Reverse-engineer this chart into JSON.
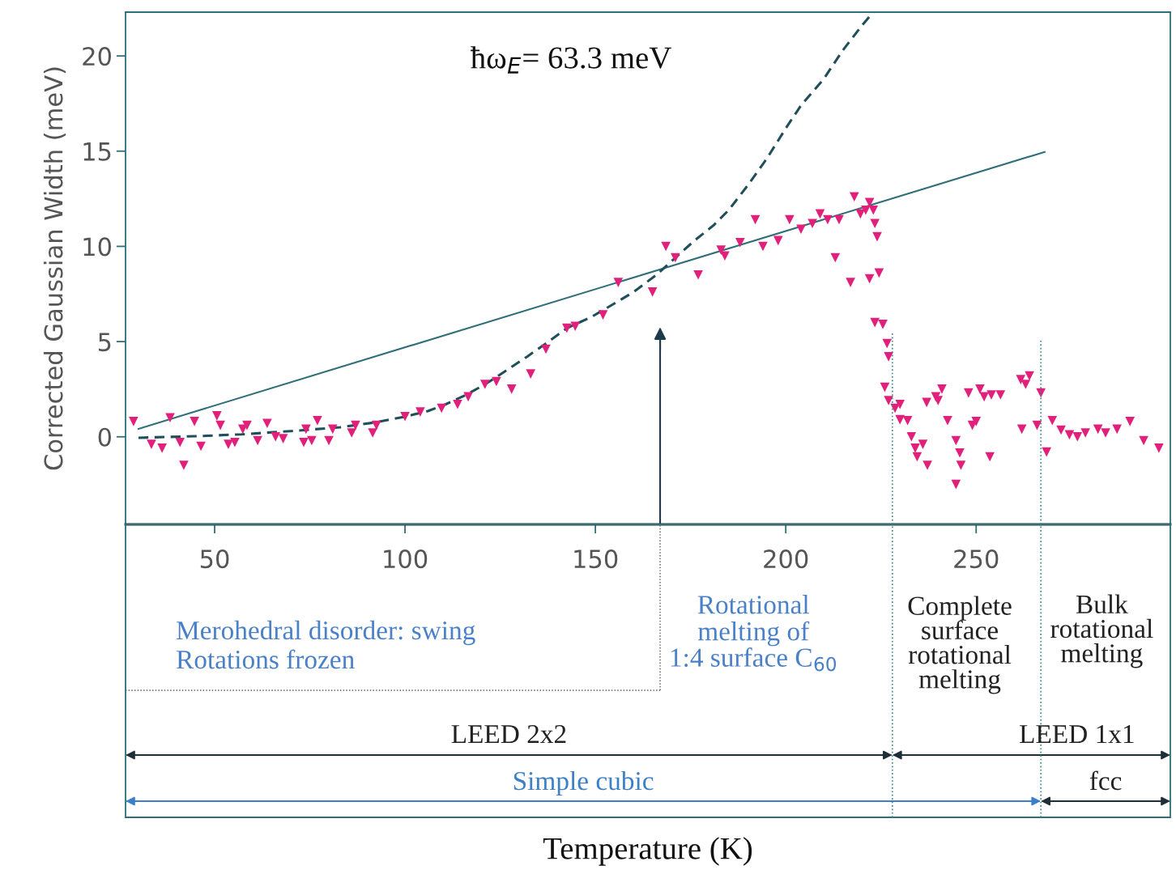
{
  "chart_data": {
    "type": "scatter",
    "ylabel": "Corrected Gaussian Width (meV)",
    "xlim": [
      26.6,
      301
    ],
    "ylim": [
      -4.6,
      22.3
    ],
    "xticks": [
      50,
      100,
      150,
      200,
      250
    ],
    "yticks": [
      0,
      5,
      10,
      15,
      20
    ],
    "grid": false,
    "series": [
      {
        "marker": "triangle",
        "color": "#e0207a",
        "x": [
          28.7,
          33.4,
          36.2,
          38.3,
          40.9,
          41.9,
          44.7,
          46.4,
          50.6,
          51.5,
          53.6,
          55.3,
          57.4,
          58.5,
          61.3,
          63.8,
          66,
          68,
          73.4,
          74,
          75.5,
          77,
          80,
          81,
          86,
          87,
          91.5,
          92.5,
          100,
          104,
          109.6,
          113.8,
          116.6,
          121,
          124,
          128,
          133,
          137,
          142.5,
          144.7,
          152,
          156,
          165,
          168.5,
          171,
          177,
          183,
          184,
          188,
          192,
          194,
          198,
          201,
          204,
          207,
          209,
          211,
          213,
          214,
          217,
          218,
          219.6,
          221,
          222,
          223,
          223.4,
          224,
          222,
          224.5,
          223.4,
          225.5,
          226.6,
          227,
          226,
          227,
          228.7,
          230,
          232,
          230,
          233,
          234,
          234.5,
          236,
          237.2,
          237,
          239.4,
          240,
          241,
          242.5,
          244.7,
          245.7,
          246,
          244.7,
          248,
          249,
          250,
          251,
          252.1,
          254,
          256.4,
          253.6,
          261.7,
          264,
          263,
          262,
          267,
          266,
          268.5,
          270,
          272.3,
          274.5,
          276.6,
          278.7,
          282,
          284,
          287,
          290.4,
          294,
          298
        ],
        "values": [
          0.8,
          -0.4,
          -0.6,
          1.0,
          -0.3,
          -1.5,
          0.8,
          -0.5,
          1.1,
          0.6,
          -0.4,
          -0.3,
          0.4,
          0.6,
          -0.2,
          0.7,
          0,
          -0.1,
          -0.3,
          0.4,
          -0.2,
          0.85,
          -0.2,
          0.4,
          0.2,
          0.6,
          0.2,
          0.6,
          1.06,
          1.3,
          1.5,
          1.7,
          2.1,
          2.75,
          2.9,
          2.5,
          3.3,
          4.6,
          5.7,
          5.8,
          6.4,
          8.1,
          7.6,
          10,
          9.4,
          8.5,
          9.8,
          9.5,
          10.2,
          11.4,
          10,
          10.3,
          11.4,
          10.9,
          11.2,
          11.7,
          11.4,
          9.4,
          11.4,
          8.1,
          12.6,
          11.7,
          11.9,
          12.3,
          11.9,
          11.2,
          10.5,
          8.3,
          8.6,
          6.0,
          5.9,
          4.9,
          4.2,
          2.6,
          1.9,
          1.5,
          0.9,
          0.85,
          1.7,
          0,
          -0.6,
          -1.05,
          -0.4,
          -1.5,
          1.8,
          2.1,
          1.9,
          2.5,
          0.85,
          -0.2,
          -0.85,
          -1.5,
          -2.5,
          2.3,
          0.6,
          0.8,
          2.5,
          2.1,
          2.2,
          2.2,
          -1.05,
          3.0,
          3.2,
          2.75,
          0.4,
          2.3,
          0.6,
          -0.8,
          0.85,
          0.35,
          0.1,
          0,
          0.2,
          0.4,
          0.2,
          0.4,
          0.8,
          -0.2,
          -0.6
        ]
      },
      {
        "type": "line",
        "marker": "none",
        "color": "#2e6f78",
        "line_style": "solid",
        "x": [
          30,
          268
        ],
        "values": [
          0.42,
          14.96
        ]
      },
      {
        "type": "line",
        "marker": "none",
        "color": "#1f4f5a",
        "line_style": "dashed",
        "x": [
          30,
          45,
          57,
          70,
          83,
          92,
          100,
          106,
          110.6,
          116,
          121,
          126,
          132,
          137,
          142.5,
          149,
          155,
          160,
          166,
          171,
          176,
          181,
          185,
          190,
          195,
          200,
          204,
          210,
          215,
          220,
          223
        ],
        "values": [
          -0.05,
          0.03,
          0.13,
          0.3,
          0.5,
          0.75,
          1.06,
          1.35,
          1.7,
          2.2,
          2.75,
          3.4,
          4.2,
          4.9,
          5.7,
          6.3,
          7.0,
          7.6,
          8.5,
          9.4,
          10.3,
          11.1,
          11.9,
          13.2,
          14.6,
          16.2,
          17.4,
          18.8,
          20.3,
          21.6,
          22.3
        ]
      }
    ],
    "ref_lines": [
      {
        "axis": "x",
        "value": 167,
        "line_style": "solid",
        "color": "#1f3a4a"
      },
      {
        "axis": "x",
        "value": 228,
        "line_style": "dotted",
        "color": "#3a8a8a"
      },
      {
        "axis": "x",
        "value": 267,
        "line_style": "dotted",
        "color": "#3a8a8a"
      }
    ],
    "annotations": [
      "Temperature (K)",
      "LEED 2x2",
      "LEED 1x1",
      "Simple cubic",
      "fcc",
      "ħω$_{E}$= 63.3 meV",
      "Merohedral disorder: swing\nRotations frozen",
      "Rotational\nmelting of\n1:4 surface C$_{60}$",
      "Complete\nsurface\nrotational\nmelting",
      "Bulk\nrotational\nmelting"
    ]
  }
}
